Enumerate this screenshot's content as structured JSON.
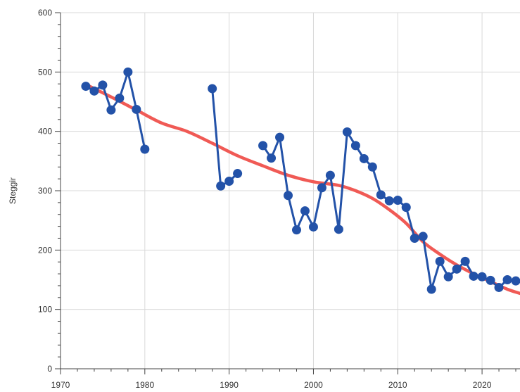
{
  "chart_data": {
    "type": "line",
    "ylabel": "Steggir",
    "xlim": [
      1970,
      2024.5
    ],
    "ylim": [
      0,
      600
    ],
    "x_ticks": [
      1970,
      1980,
      1990,
      2000,
      2010,
      2020
    ],
    "x_tick_labels": [
      "1970",
      "1980",
      "1990",
      "2000",
      "2010",
      "2020"
    ],
    "y_ticks": [
      0,
      100,
      200,
      300,
      400,
      500,
      600
    ],
    "y_tick_labels": [
      "0",
      "100",
      "200",
      "300",
      "400",
      "500",
      "600"
    ],
    "grid": true,
    "colors": {
      "observed": "#2352a8",
      "trend": "#f05a55",
      "grid": "#d9d9d9",
      "axis": "#444444"
    },
    "series": [
      {
        "kind": "observed",
        "segments": [
          [
            [
              1973,
              476
            ],
            [
              1974,
              468
            ],
            [
              1975,
              478
            ],
            [
              1976,
              436
            ],
            [
              1977,
              456
            ],
            [
              1978,
              500
            ],
            [
              1979,
              437
            ],
            [
              1980,
              370
            ]
          ],
          [
            [
              1988,
              472
            ],
            [
              1989,
              308
            ],
            [
              1990,
              316
            ],
            [
              1991,
              329
            ]
          ],
          [
            [
              1994,
              376
            ],
            [
              1995,
              355
            ],
            [
              1996,
              390
            ],
            [
              1997,
              292
            ],
            [
              1998,
              234
            ],
            [
              1999,
              266
            ],
            [
              2000,
              239
            ],
            [
              2001,
              305
            ],
            [
              2002,
              326
            ],
            [
              2003,
              235
            ],
            [
              2004,
              399
            ],
            [
              2005,
              376
            ],
            [
              2006,
              354
            ],
            [
              2007,
              340
            ],
            [
              2008,
              293
            ],
            [
              2009,
              283
            ],
            [
              2010,
              284
            ],
            [
              2011,
              272
            ],
            [
              2012,
              220
            ],
            [
              2013,
              223
            ],
            [
              2014,
              134
            ],
            [
              2015,
              181
            ],
            [
              2016,
              155
            ],
            [
              2017,
              168
            ],
            [
              2018,
              181
            ],
            [
              2019,
              156
            ],
            [
              2020,
              155
            ],
            [
              2021,
              149
            ],
            [
              2022,
              137
            ],
            [
              2023,
              150
            ],
            [
              2024,
              148
            ]
          ]
        ]
      },
      {
        "kind": "trend",
        "points": [
          [
            1973,
            479
          ],
          [
            1976,
            458
          ],
          [
            1979,
            436
          ],
          [
            1982,
            414
          ],
          [
            1985,
            400
          ],
          [
            1988,
            380
          ],
          [
            1991,
            359
          ],
          [
            1994,
            342
          ],
          [
            1997,
            326
          ],
          [
            2000,
            315
          ],
          [
            2003,
            309
          ],
          [
            2005,
            300
          ],
          [
            2007,
            287
          ],
          [
            2009,
            268
          ],
          [
            2011,
            245
          ],
          [
            2013,
            214
          ],
          [
            2015,
            193
          ],
          [
            2017,
            175
          ],
          [
            2019,
            160
          ],
          [
            2021,
            147
          ],
          [
            2023,
            134
          ],
          [
            2024.5,
            127
          ]
        ]
      }
    ]
  }
}
